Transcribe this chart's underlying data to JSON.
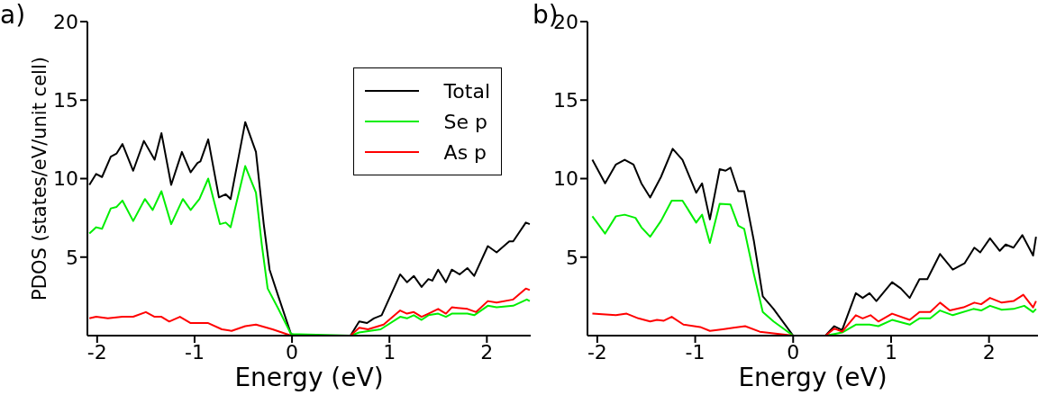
{
  "chart_data": [
    {
      "type": "line",
      "title": "a)",
      "xlabel": "Energy (eV)",
      "ylabel": "PDOS (states/eV/unit cell)",
      "xlim": [
        -2.1,
        2.45
      ],
      "ylim": [
        0,
        20
      ],
      "xticks": [
        -2,
        -1,
        0,
        1,
        2
      ],
      "yticks": [
        5,
        10,
        15,
        20
      ],
      "grid": false,
      "legend": "top right",
      "marker": "none",
      "line_style": "solid",
      "series": [
        {
          "name": "Total",
          "color": "#000000",
          "x": [
            -2.08,
            -2.01,
            -1.95,
            -1.86,
            -1.8,
            -1.74,
            -1.63,
            -1.52,
            -1.41,
            -1.34,
            -1.24,
            -1.13,
            -1.04,
            -0.97,
            -0.94,
            -0.86,
            -0.75,
            -0.68,
            -0.63,
            -0.48,
            -0.37,
            -0.29,
            -0.23,
            -0.14,
            -0.01,
            0.05,
            0.6,
            0.69,
            0.77,
            0.84,
            0.92,
            1.11,
            1.18,
            1.25,
            1.33,
            1.4,
            1.44,
            1.5,
            1.58,
            1.64,
            1.72,
            1.8,
            1.87,
            2.01,
            2.1,
            2.23,
            2.27,
            2.4,
            2.44
          ],
          "values": [
            9.6,
            10.3,
            10.1,
            11.4,
            11.6,
            12.2,
            10.5,
            12.4,
            11.2,
            12.9,
            9.6,
            11.7,
            10.4,
            11,
            11.1,
            12.5,
            8.8,
            9,
            8.7,
            13.6,
            11.7,
            7.1,
            4.2,
            2.5,
            0.1,
            0,
            0,
            0.9,
            0.8,
            1.1,
            1.3,
            3.9,
            3.4,
            3.8,
            3.1,
            3.6,
            3.5,
            4.2,
            3.4,
            4.2,
            3.9,
            4.3,
            3.8,
            5.7,
            5.3,
            6,
            6,
            7.2,
            7.1
          ]
        },
        {
          "name": "Se p",
          "color": "#00ee00",
          "x": [
            -2.08,
            -2.01,
            -1.95,
            -1.86,
            -1.8,
            -1.74,
            -1.63,
            -1.51,
            -1.43,
            -1.34,
            -1.24,
            -1.12,
            -1.04,
            -0.95,
            -0.86,
            -0.74,
            -0.68,
            -0.63,
            -0.48,
            -0.37,
            -0.31,
            -0.25,
            -0.14,
            -0.01,
            0.6,
            0.69,
            0.91,
            1.11,
            1.18,
            1.25,
            1.33,
            1.4,
            1.5,
            1.58,
            1.64,
            1.8,
            1.87,
            2.01,
            2.1,
            2.27,
            2.41,
            2.44
          ],
          "values": [
            6.5,
            6.9,
            6.8,
            8.1,
            8.2,
            8.6,
            7.3,
            8.7,
            8,
            9.2,
            7.1,
            8.7,
            8,
            8.7,
            10,
            7.1,
            7.2,
            6.9,
            10.8,
            9.1,
            5.8,
            3,
            1.7,
            0.1,
            0,
            0.2,
            0.4,
            1.2,
            1.1,
            1.3,
            1,
            1.3,
            1.4,
            1.2,
            1.4,
            1.4,
            1.3,
            1.9,
            1.8,
            1.9,
            2.3,
            2.2
          ]
        },
        {
          "name": "As p",
          "color": "#ff0000",
          "x": [
            -2.08,
            -2.01,
            -1.89,
            -1.74,
            -1.63,
            -1.5,
            -1.41,
            -1.34,
            -1.26,
            -1.15,
            -1.04,
            -0.86,
            -0.72,
            -0.62,
            -0.48,
            -0.37,
            -0.2,
            -0.01,
            0.6,
            0.69,
            0.78,
            0.94,
            1.11,
            1.18,
            1.25,
            1.33,
            1.4,
            1.5,
            1.58,
            1.64,
            1.8,
            1.89,
            2.01,
            2.1,
            2.27,
            2.4,
            2.44
          ],
          "values": [
            1.1,
            1.2,
            1.1,
            1.2,
            1.2,
            1.5,
            1.2,
            1.2,
            0.9,
            1.2,
            0.8,
            0.8,
            0.4,
            0.3,
            0.6,
            0.7,
            0.4,
            0,
            0,
            0.5,
            0.4,
            0.7,
            1.6,
            1.4,
            1.5,
            1.2,
            1.4,
            1.7,
            1.4,
            1.8,
            1.7,
            1.5,
            2.2,
            2.1,
            2.3,
            3,
            2.9
          ]
        }
      ]
    },
    {
      "type": "line",
      "title": "b)",
      "xlabel": "Energy (eV)",
      "xlim": [
        -2.1,
        2.5
      ],
      "ylim": [
        0,
        20
      ],
      "xticks": [
        -2,
        -1,
        0,
        1,
        2
      ],
      "yticks": [
        5,
        10,
        15,
        20
      ],
      "grid": false,
      "marker": "none",
      "line_style": "solid",
      "series": [
        {
          "color": "#000000",
          "x": [
            -2.05,
            -1.92,
            -1.81,
            -1.72,
            -1.63,
            -1.55,
            -1.46,
            -1.35,
            -1.23,
            -1.13,
            -0.99,
            -0.93,
            -0.85,
            -0.75,
            -0.69,
            -0.64,
            -0.56,
            -0.5,
            -0.4,
            -0.31,
            -0.2,
            0,
            0.33,
            0.42,
            0.5,
            0.64,
            0.71,
            0.78,
            0.85,
            1.01,
            1.1,
            1.19,
            1.29,
            1.37,
            1.5,
            1.63,
            1.75,
            1.85,
            1.91,
            2.01,
            2.11,
            2.17,
            2.25,
            2.34,
            2.45,
            2.48
          ],
          "values": [
            11.2,
            9.7,
            10.9,
            11.2,
            10.9,
            9.7,
            8.8,
            10.1,
            11.9,
            11.2,
            9.1,
            9.7,
            7.4,
            10.6,
            10.5,
            10.7,
            9.2,
            9.2,
            6,
            2.5,
            1.7,
            0,
            0,
            0.6,
            0.35,
            2.7,
            2.4,
            2.7,
            2.2,
            3.4,
            3,
            2.4,
            3.6,
            3.6,
            5.2,
            4.2,
            4.6,
            5.6,
            5.3,
            6.2,
            5.4,
            5.8,
            5.6,
            6.4,
            5.1,
            6.3
          ]
        },
        {
          "color": "#00ee00",
          "x": [
            -2.05,
            -1.92,
            -1.81,
            -1.72,
            -1.61,
            -1.55,
            -1.46,
            -1.35,
            -1.24,
            -1.13,
            -0.99,
            -0.93,
            -0.85,
            -0.75,
            -0.64,
            -0.56,
            -0.5,
            -0.4,
            -0.31,
            -0.2,
            0,
            0.33,
            0.42,
            0.5,
            0.64,
            0.78,
            0.87,
            1.01,
            1.19,
            1.29,
            1.4,
            1.5,
            1.63,
            1.84,
            1.92,
            2.01,
            2.13,
            2.25,
            2.36,
            2.45,
            2.48
          ],
          "values": [
            7.6,
            6.5,
            7.6,
            7.7,
            7.5,
            6.9,
            6.3,
            7.3,
            8.6,
            8.6,
            7.2,
            7.7,
            5.9,
            8.4,
            8.35,
            7,
            6.8,
            3.9,
            1.5,
            0.9,
            0,
            0,
            0.1,
            0.2,
            0.7,
            0.7,
            0.6,
            1,
            0.7,
            1.1,
            1.1,
            1.6,
            1.3,
            1.7,
            1.6,
            1.9,
            1.65,
            1.7,
            1.9,
            1.5,
            1.7
          ]
        },
        {
          "color": "#ff0000",
          "x": [
            -2.05,
            -1.81,
            -1.7,
            -1.58,
            -1.46,
            -1.39,
            -1.32,
            -1.24,
            -1.12,
            -0.95,
            -0.85,
            -0.72,
            -0.61,
            -0.49,
            -0.34,
            0,
            0.33,
            0.42,
            0.5,
            0.64,
            0.71,
            0.79,
            0.87,
            1.01,
            1.19,
            1.29,
            1.4,
            1.5,
            1.6,
            1.74,
            1.85,
            1.92,
            2.01,
            2.13,
            2.25,
            2.35,
            2.45,
            2.48
          ],
          "values": [
            1.4,
            1.3,
            1.4,
            1.1,
            0.9,
            1,
            0.95,
            1.2,
            0.7,
            0.55,
            0.3,
            0.4,
            0.5,
            0.6,
            0.25,
            0,
            0,
            0.45,
            0.25,
            1.3,
            1.1,
            1.3,
            0.9,
            1.4,
            1,
            1.5,
            1.5,
            2.1,
            1.6,
            1.8,
            2.1,
            2,
            2.4,
            2.1,
            2.2,
            2.6,
            1.8,
            2.2
          ]
        }
      ]
    }
  ]
}
